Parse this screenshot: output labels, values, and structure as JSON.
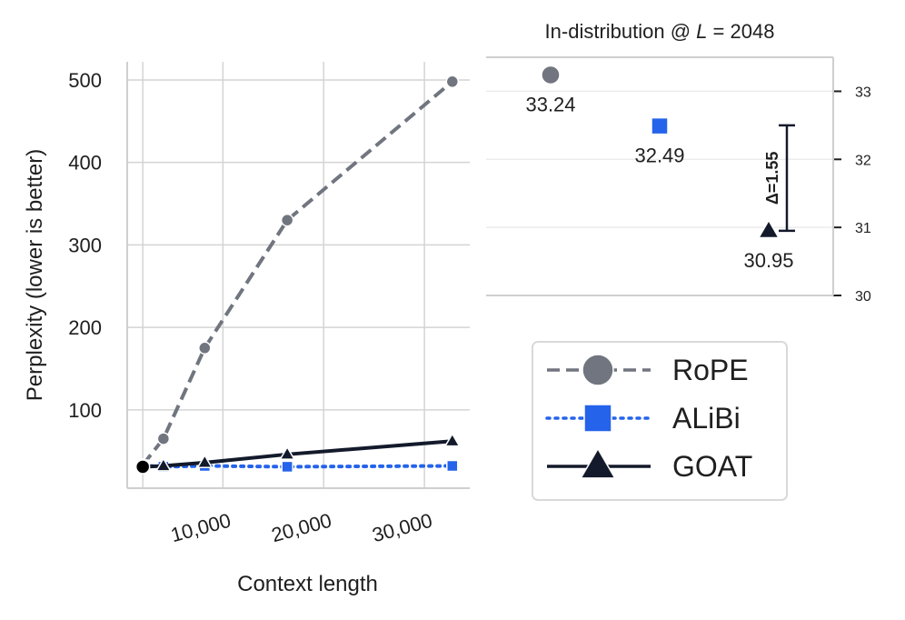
{
  "colors": {
    "rope": "#70757f",
    "alibi": "#2563eb",
    "goat": "#131a2b"
  },
  "chart_data": [
    {
      "type": "line",
      "title": "",
      "xlabel": "Context length",
      "ylabel": "Perplexity (lower is better)",
      "x": [
        2048,
        4096,
        8192,
        16384,
        32768
      ],
      "xlim": [
        500,
        34500
      ],
      "ylim": [
        5,
        522
      ],
      "xticks": [
        10000,
        20000,
        30000
      ],
      "xtick_labels": [
        "10,000",
        "20,000",
        "30,000"
      ],
      "yticks": [
        100,
        200,
        300,
        400,
        500
      ],
      "ytick_labels": [
        "100",
        "200",
        "300",
        "400",
        "500"
      ],
      "grid": true,
      "series": [
        {
          "name": "RoPE",
          "values": [
            33.24,
            65,
            175,
            330,
            498
          ],
          "color": "#70757f",
          "marker": "circle",
          "linestyle": "dashed"
        },
        {
          "name": "ALiBi",
          "values": [
            32.49,
            31,
            32,
            31,
            32
          ],
          "color": "#2563eb",
          "marker": "square",
          "linestyle": "dotted"
        },
        {
          "name": "GOAT",
          "values": [
            30.95,
            32,
            36,
            46,
            62
          ],
          "color": "#131a2b",
          "marker": "triangle",
          "linestyle": "solid"
        }
      ]
    },
    {
      "type": "scatter",
      "title_prefix": "In-distribution @ ",
      "title_var": "L",
      "title_suffix": " = 2048",
      "categories": [
        "RoPE",
        "ALiBi",
        "GOAT"
      ],
      "values": [
        33.24,
        32.49,
        30.95
      ],
      "value_labels": [
        "33.24",
        "32.49",
        "30.95"
      ],
      "ylim": [
        30,
        33.5
      ],
      "yticks": [
        30,
        31,
        32,
        33
      ],
      "ytick_labels": [
        "30",
        "31",
        "32",
        "33"
      ],
      "y_axis_side": "right",
      "annotation": {
        "text": "Δ=1.55",
        "from": 30.95,
        "to": 32.5
      }
    }
  ],
  "legend": {
    "placement": "bottom-right",
    "items": [
      {
        "label": "RoPE",
        "color": "#70757f",
        "marker": "circle",
        "linestyle": "dashed"
      },
      {
        "label": "ALiBi",
        "color": "#2563eb",
        "marker": "square",
        "linestyle": "dotted"
      },
      {
        "label": "GOAT",
        "color": "#131a2b",
        "marker": "triangle",
        "linestyle": "solid"
      }
    ]
  }
}
